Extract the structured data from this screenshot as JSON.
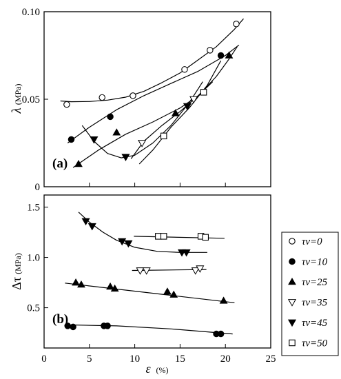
{
  "chart_data": [
    {
      "type": "scatter",
      "panel_label": "(a)",
      "ylabel": "λ",
      "ylabel_unit": "(MPa)",
      "xlim": [
        0,
        25
      ],
      "ylim": [
        0,
        0.1
      ],
      "yticks": [
        "0",
        "0.05",
        "0.10"
      ],
      "yticks_values": [
        0,
        0.05,
        0.1
      ],
      "grid": false,
      "series": [
        {
          "name": "τv=0",
          "marker": "open-circle",
          "x": [
            2.5,
            6.4,
            9.8,
            15.5,
            18.3,
            21.2
          ],
          "y": [
            0.047,
            0.051,
            0.052,
            0.067,
            0.078,
            0.093
          ],
          "fit_x": [
            1.8,
            3,
            5,
            7,
            9,
            11,
            13,
            15,
            17,
            19,
            21,
            22
          ],
          "fit_y": [
            0.049,
            0.0486,
            0.0487,
            0.0495,
            0.0512,
            0.0545,
            0.0595,
            0.065,
            0.0725,
            0.08,
            0.09,
            0.096
          ]
        },
        {
          "name": "τv=10",
          "marker": "filled-circle",
          "x": [
            3,
            7.3,
            19.5
          ],
          "y": [
            0.027,
            0.04,
            0.075
          ],
          "fit_x": [
            2.6,
            5,
            8,
            11,
            14,
            17,
            20,
            21.5
          ],
          "fit_y": [
            0.025,
            0.034,
            0.044,
            0.052,
            0.059,
            0.066,
            0.075,
            0.081
          ]
        },
        {
          "name": "τv=25",
          "marker": "filled-triangle-up",
          "x": [
            3.8,
            8,
            14.5,
            20.4
          ],
          "y": [
            0.013,
            0.031,
            0.042,
            0.075
          ],
          "fit_x": [
            3.2,
            6,
            9,
            12,
            15,
            17,
            19,
            20.4,
            21.3
          ],
          "fit_y": [
            0.011,
            0.021,
            0.03,
            0.037,
            0.045,
            0.052,
            0.063,
            0.073,
            0.08
          ]
        },
        {
          "name": "τv=35",
          "marker": "open-triangle-down",
          "x": [
            10.8,
            16.5
          ],
          "y": [
            0.025,
            0.05
          ],
          "fit_x": [
            9.6,
            11,
            13,
            15,
            17,
            18.6
          ],
          "fit_y": [
            0.016,
            0.026,
            0.035,
            0.043,
            0.052,
            0.06
          ]
        },
        {
          "name": "τv=45",
          "marker": "filled-triangle-down",
          "x": [
            5.5,
            9,
            15.8
          ],
          "y": [
            0.027,
            0.017,
            0.046
          ],
          "fit_x": [
            4.2,
            5.5,
            7,
            8.5,
            10,
            12,
            14,
            16,
            17.5
          ],
          "fit_y": [
            0.035,
            0.026,
            0.019,
            0.0165,
            0.018,
            0.025,
            0.035,
            0.048,
            0.06
          ]
        },
        {
          "name": "τv=50",
          "marker": "open-square",
          "x": [
            13.2,
            17.6
          ],
          "y": [
            0.029,
            0.054
          ],
          "fit_x": [
            10.5,
            12,
            14,
            16,
            18,
            19.5
          ],
          "fit_y": [
            0.013,
            0.021,
            0.034,
            0.045,
            0.058,
            0.072
          ]
        }
      ]
    },
    {
      "type": "scatter",
      "panel_label": "(b)",
      "ylabel": "Δτ",
      "ylabel_unit": "(MPa)",
      "xlabel": "ε",
      "xlabel_unit": "(%)",
      "xlim": [
        0,
        25
      ],
      "ylim": [
        0.1,
        1.62
      ],
      "xticks": [
        "0",
        "5",
        "10",
        "15",
        "20",
        "25"
      ],
      "xticks_values": [
        0,
        5,
        10,
        15,
        20,
        25
      ],
      "yticks": [
        "0.5",
        "1.0",
        "1.5"
      ],
      "yticks_values": [
        0.5,
        1.0,
        1.5
      ],
      "grid": false,
      "series": [
        {
          "name": "τv=0",
          "marker": "open-circle",
          "x": [],
          "y": [],
          "fit_x": [],
          "fit_y": []
        },
        {
          "name": "τv=10",
          "marker": "filled-circle",
          "x": [
            2.6,
            3.2,
            6.6,
            7.0,
            19.0,
            19.5
          ],
          "y": [
            0.32,
            0.31,
            0.32,
            0.32,
            0.24,
            0.24
          ],
          "fit_x": [
            2.3,
            8,
            14,
            20.8
          ],
          "fit_y": [
            0.33,
            0.32,
            0.29,
            0.24
          ]
        },
        {
          "name": "τv=25",
          "marker": "filled-triangle-up",
          "x": [
            3.5,
            4.1,
            7.3,
            7.8,
            13.6,
            14.3,
            19.8
          ],
          "y": [
            0.75,
            0.73,
            0.71,
            0.69,
            0.66,
            0.63,
            0.57
          ],
          "fit_x": [
            2.3,
            21
          ],
          "fit_y": [
            0.745,
            0.55
          ]
        },
        {
          "name": "τv=35",
          "marker": "open-triangle-down",
          "x": [
            10.6,
            11.3,
            16.7,
            17.2
          ],
          "y": [
            0.87,
            0.87,
            0.87,
            0.89
          ],
          "fit_x": [
            9.7,
            17.9
          ],
          "fit_y": [
            0.87,
            0.88
          ]
        },
        {
          "name": "τv=45",
          "marker": "filled-triangle-down",
          "x": [
            4.6,
            5.3,
            8.6,
            9.3,
            15.2,
            15.7
          ],
          "y": [
            1.36,
            1.31,
            1.16,
            1.14,
            1.05,
            1.05
          ],
          "fit_x": [
            3.8,
            5,
            6.5,
            8,
            10,
            12.5,
            15,
            18
          ],
          "fit_y": [
            1.45,
            1.35,
            1.25,
            1.17,
            1.1,
            1.06,
            1.05,
            1.05
          ]
        },
        {
          "name": "τv=50",
          "marker": "open-square",
          "x": [
            12.6,
            13.2,
            17.3,
            17.8
          ],
          "y": [
            1.21,
            1.21,
            1.21,
            1.2
          ],
          "fit_x": [
            9.9,
            19.9
          ],
          "fit_y": [
            1.21,
            1.19
          ]
        }
      ]
    }
  ],
  "legend": {
    "placement": "right of panel (b)",
    "entries": [
      {
        "marker": "open-circle",
        "label": "τv=0"
      },
      {
        "marker": "filled-circle",
        "label": "τv=10"
      },
      {
        "marker": "filled-triangle-up",
        "label": "τv=25"
      },
      {
        "marker": "open-triangle-down",
        "label": "τv=35"
      },
      {
        "marker": "filled-triangle-down",
        "label": "τv=45"
      },
      {
        "marker": "open-square",
        "label": "τv=50"
      }
    ]
  }
}
